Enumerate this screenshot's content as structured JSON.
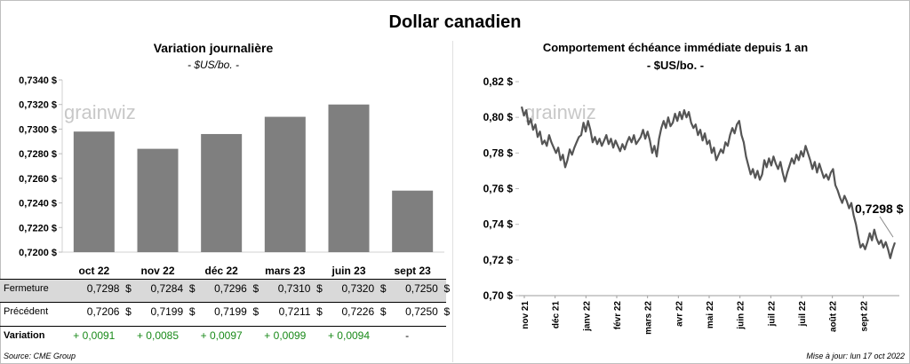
{
  "title": "Dollar canadien",
  "left": {
    "title": "Variation  journalière",
    "unit": "- $US/bo. -",
    "watermark": "grainwiz",
    "chart_data": {
      "type": "bar",
      "categories": [
        "oct 22",
        "nov 22",
        "déc 22",
        "mars 23",
        "juin 23",
        "sept 23"
      ],
      "values": [
        0.7298,
        0.7284,
        0.7296,
        0.731,
        0.732,
        0.725
      ],
      "ylim": [
        0.72,
        0.734
      ],
      "yticks": [
        "0,7200 $",
        "0,7220 $",
        "0,7240 $",
        "0,7260 $",
        "0,7280 $",
        "0,7300 $",
        "0,7320 $",
        "0,7340 $"
      ],
      "bar_color": "#7f7f7f"
    },
    "table": {
      "rows": [
        {
          "label": "Fermeture",
          "values": [
            "0,7298  $",
            "0,7284  $",
            "0,7296  $",
            "0,7310  $",
            "0,7320  $",
            "0,7250  $"
          ]
        },
        {
          "label": "Précédent",
          "values": [
            "0,7206  $",
            "0,7199  $",
            "0,7199  $",
            "0,7211  $",
            "0,7226  $",
            "0,7250  $"
          ]
        },
        {
          "label": "Variation",
          "values": [
            "+ 0,0091",
            "+ 0,0085",
            "+ 0,0097",
            "+ 0,0099",
            "+ 0,0094",
            "-"
          ]
        }
      ],
      "variation_color": "#1a8a1a",
      "fermeture_bg": "#d9d9d9"
    }
  },
  "right": {
    "title": "Comportement échéance immédiate depuis 1 an",
    "unit": "- $US/bo. -",
    "watermark": "grainwiz",
    "callout": "0,7298 $",
    "chart_data": {
      "type": "line",
      "ylim": [
        0.7,
        0.82
      ],
      "yticks": [
        "0,70 $",
        "0,72 $",
        "0,74 $",
        "0,76 $",
        "0,78 $",
        "0,80 $",
        "0,82 $"
      ],
      "xticks": [
        "nov 21",
        "déc 21",
        "janv 22",
        "févr 22",
        "mars 22",
        "avr 22",
        "mai 22",
        "juin 22",
        "juil 22",
        "juil 22",
        "août 22",
        "sept 22"
      ],
      "line_color": "#555555",
      "series": [
        {
          "values": [
            0.806,
            0.801,
            0.804,
            0.796,
            0.799,
            0.793,
            0.796,
            0.789,
            0.792,
            0.785,
            0.787,
            0.784,
            0.79,
            0.786,
            0.783,
            0.78,
            0.783,
            0.776,
            0.779,
            0.772,
            0.776,
            0.782,
            0.779,
            0.783,
            0.786,
            0.789,
            0.79,
            0.797,
            0.792,
            0.798,
            0.793,
            0.786,
            0.789,
            0.785,
            0.788,
            0.784,
            0.787,
            0.79,
            0.785,
            0.788,
            0.783,
            0.787,
            0.784,
            0.781,
            0.785,
            0.782,
            0.786,
            0.789,
            0.786,
            0.79,
            0.785,
            0.787,
            0.789,
            0.793,
            0.788,
            0.792,
            0.787,
            0.78,
            0.784,
            0.778,
            0.788,
            0.794,
            0.798,
            0.794,
            0.8,
            0.795,
            0.797,
            0.802,
            0.798,
            0.803,
            0.799,
            0.804,
            0.8,
            0.803,
            0.797,
            0.794,
            0.796,
            0.79,
            0.793,
            0.787,
            0.791,
            0.785,
            0.787,
            0.78,
            0.783,
            0.776,
            0.779,
            0.782,
            0.78,
            0.786,
            0.784,
            0.79,
            0.794,
            0.791,
            0.796,
            0.798,
            0.79,
            0.786,
            0.778,
            0.773,
            0.768,
            0.771,
            0.766,
            0.77,
            0.765,
            0.768,
            0.776,
            0.772,
            0.777,
            0.773,
            0.778,
            0.774,
            0.771,
            0.775,
            0.769,
            0.764,
            0.769,
            0.773,
            0.777,
            0.774,
            0.779,
            0.776,
            0.781,
            0.778,
            0.784,
            0.78,
            0.776,
            0.771,
            0.775,
            0.769,
            0.774,
            0.77,
            0.766,
            0.768,
            0.765,
            0.769,
            0.771,
            0.762,
            0.759,
            0.755,
            0.752,
            0.756,
            0.753,
            0.749,
            0.752,
            0.745,
            0.74,
            0.733,
            0.727,
            0.729,
            0.726,
            0.73,
            0.735,
            0.731,
            0.737,
            0.732,
            0.729,
            0.731,
            0.727,
            0.73,
            0.726,
            0.721,
            0.726,
            0.7298
          ]
        }
      ]
    }
  },
  "footer": {
    "source": "Source: CME Group",
    "updated": "Mise à jour: lun 17 oct 2022"
  }
}
